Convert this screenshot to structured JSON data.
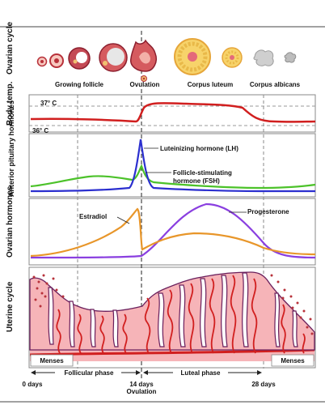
{
  "panels": {
    "ovarian_cycle": "Ovarian cycle",
    "body_temp": "Body temp.",
    "anterior_pituitary": "Anterior pituitary hormones",
    "ovarian_hormones": "Ovarian hormones",
    "uterine_cycle": "Uterine cycle"
  },
  "ovary_labels": {
    "growing_follicle": "Growing follicle",
    "ovulation": "Ovulation",
    "corpus_luteum": "Corpus luteum",
    "corpus_albicans": "Corpus albicans"
  },
  "temperature": {
    "high": "37° C",
    "low": "36° C"
  },
  "pituitary": {
    "lh": "Luteinizing hormone (LH)",
    "fsh_line1": "Follicle-stimulating",
    "fsh_line2": "hormone (FSH)"
  },
  "ovarian_hormone_labels": {
    "estradiol": "Estradiol",
    "progesterone": "Progesterone"
  },
  "menses": {
    "left": "Menses",
    "right": "Menses"
  },
  "phases": {
    "follicular": "Follicular phase",
    "luteal": "Luteal phase"
  },
  "days": {
    "d0": "0 days",
    "d14": "14 days",
    "d14_sub": "Ovulation",
    "d28": "28 days"
  },
  "colors": {
    "temperature": "#d11f1f",
    "lh": "#2b2fcf",
    "fsh": "#4cc22a",
    "estradiol": "#e8962a",
    "progesterone": "#8a3fe0",
    "endometrium": "#f6b4b8",
    "vessel": "#d11f1f",
    "border": "#6a1f5c"
  }
}
